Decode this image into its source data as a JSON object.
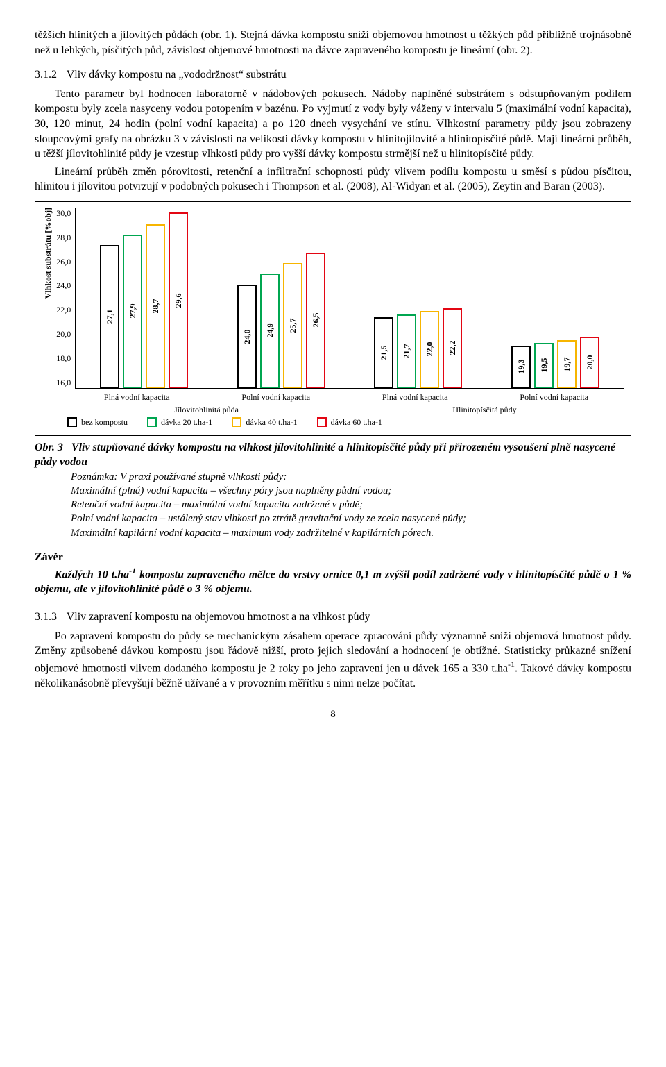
{
  "para1": "těžších hlinitých a jílovitých půdách (obr. 1). Stejná dávka kompostu sníží objemovou hmotnost u těžkých půd přibližně trojnásobně než u lehkých, písčitých půd, závislost objemové hmotnosti na dávce zapraveného kompostu je lineární (obr. 2).",
  "sec312_num": "3.1.2",
  "sec312_title": "Vliv dávky kompostu na „vododržnost“ substrátu",
  "para2": "Tento parametr byl hodnocen laboratorně v nádobových pokusech. Nádoby naplněné substrátem s odstupňovaným podílem kompostu byly zcela nasyceny vodou potopením v bazénu. Po vyjmutí z vody byly váženy v intervalu 5 (maximální vodní kapacita), 30, 120 minut, 24 hodin (polní vodní kapacita) a po 120 dnech vysychání ve stínu. Vlhkostní parametry půdy jsou zobrazeny sloupcovými grafy na obrázku 3 v závislosti na velikosti dávky kompostu v hlinitojílovité a hlinitopísčité půdě. Mají lineární průběh, u těžší jílovitohlinité půdy je vzestup vlhkosti půdy pro vyšší dávky kompostu strmější než u hlinitopísčité půdy.",
  "para3": "Lineární průběh změn pórovitosti, retenční a infiltrační schopnosti půdy vlivem podílu kompostu u směsí s půdou písčitou, hlinitou i jílovitou potvrzují v podobných pokusech i Thompson et al. (2008), Al-Widyan et al. (2005), Zeytin and Baran (2003).",
  "chart": {
    "type": "bar",
    "y_label": "Vlhkost substrátu [%obj]",
    "y_min": 16.0,
    "y_max": 30.0,
    "y_ticks": [
      "30,0",
      "28,0",
      "26,0",
      "24,0",
      "22,0",
      "20,0",
      "18,0",
      "16,0"
    ],
    "series_colors": [
      "#000000",
      "#00a650",
      "#f7b500",
      "#e30613"
    ],
    "bar_bg": "#ffffff",
    "border_width": 2,
    "groups": [
      {
        "cat": "Plná vodní kapacita",
        "vals": [
          27.1,
          27.9,
          28.7,
          29.6
        ],
        "labels": [
          "27,1",
          "27,9",
          "28,7",
          "29,6"
        ]
      },
      {
        "cat": "Polní vodní  kapacita",
        "vals": [
          24.0,
          24.9,
          25.7,
          26.5
        ],
        "labels": [
          "24,0",
          "24,9",
          "25,7",
          "26,5"
        ]
      },
      {
        "cat": "Plná vodní kapacita",
        "vals": [
          21.5,
          21.7,
          22.0,
          22.2
        ],
        "labels": [
          "21,5",
          "21,7",
          "22,0",
          "22,2"
        ]
      },
      {
        "cat": "Polní vodní  kapacita",
        "vals": [
          19.3,
          19.5,
          19.7,
          20.0
        ],
        "labels": [
          "19,3",
          "19,5",
          "19,7",
          "20,0"
        ]
      }
    ],
    "supercats": [
      "Jílovitohlinitá půda",
      "Hlinitopísčitá půdy"
    ],
    "legend": [
      "bez kompostu",
      "dávka 20 t.ha-1",
      "dávka 40 t.ha-1",
      "dávka 60 t.ha-1"
    ]
  },
  "fig3_label": "Obr. 3",
  "fig3_title": "Vliv stupňované dávky kompostu na vlhkost jílovitohlinité a hlinitopísčité půdy při přirozeném vysoušení plně nasycené půdy vodou",
  "fig3_note_label": "Poznámka: V praxi používané stupně vlhkosti půdy:",
  "fig3_notes": [
    "Maximální (plná) vodní kapacita – všechny póry jsou naplněny půdní vodou;",
    "Retenční vodní kapacita – maximální vodní kapacita zadržené v půdě;",
    "Polní vodní kapacita – ustálený stav vlhkosti po ztrátě gravitační vody ze zcela nasycené půdy;",
    "Maximální kapilární vodní kapacita – maximum vody zadržitelné v kapilárních pórech."
  ],
  "zaver_heading": "Závěr",
  "zaver_prefix": "Každých 10 t.ha",
  "zaver_exp": "-1",
  "zaver_suffix": " kompostu zapraveného mělce do vrstvy ornice 0,1 m zvýšil podíl zadržené vody v hlinitopísčité půdě o 1 % objemu, ale v jílovitohlinité půdě o 3 % objemu.",
  "sec313_num": "3.1.3",
  "sec313_title": "Vliv zapravení kompostu na objemovou hmotnost a na vlhkost půdy",
  "para4_prefix": "Po zapravení kompostu do půdy se mechanickým zásahem operace zpracování půdy významně sníží objemová hmotnost půdy. Změny způsobené dávkou kompostu jsou řádově nižší, proto jejich sledování a hodnocení je obtížné. Statisticky průkazné snížení objemové hmotnosti vlivem dodaného kompostu je 2 roky po jeho zapravení jen u dávek 165 a 330 t.ha",
  "para4_exp": "-1",
  "para4_suffix": ". Takové dávky kompostu několikanásobně převyšují běžně užívané a v provozním měřítku s nimi nelze počítat.",
  "pagenum": "8"
}
